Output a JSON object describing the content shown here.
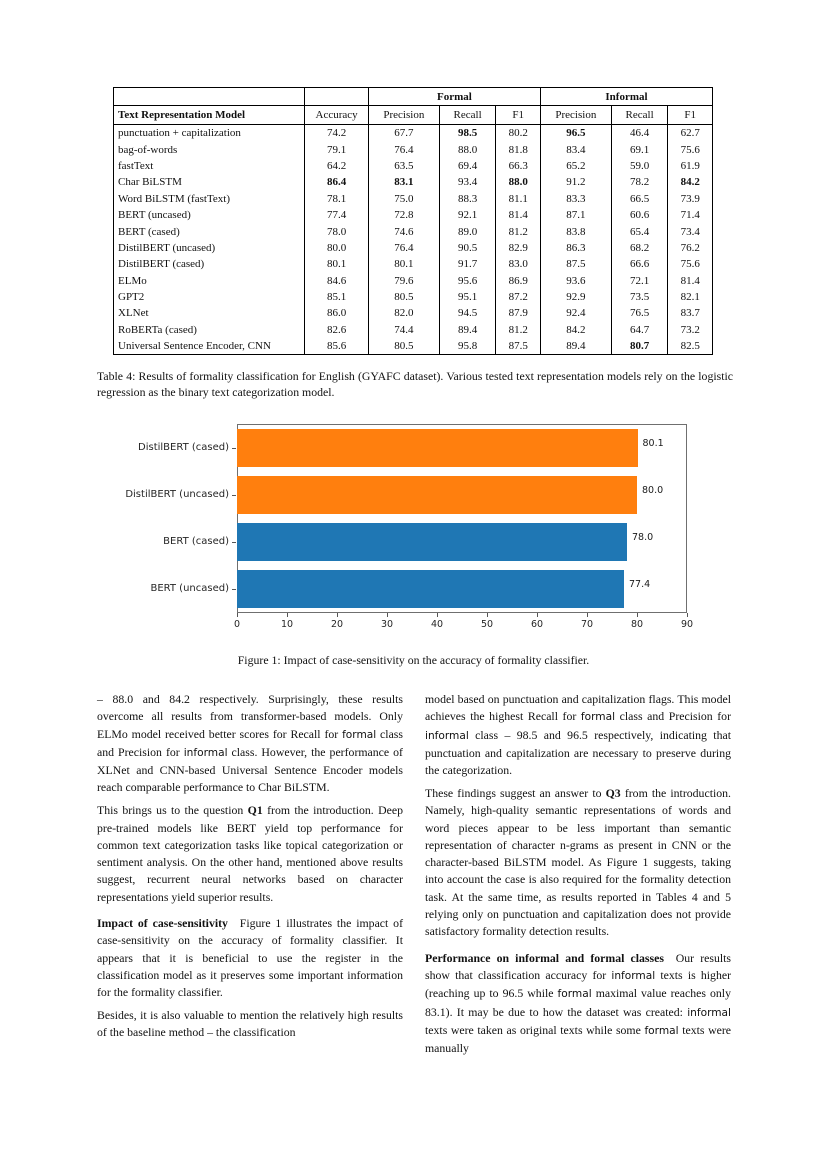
{
  "table": {
    "formal_header": "Formal",
    "informal_header": "Informal",
    "columns": [
      "Text Representation Model",
      "Accuracy",
      "Precision",
      "Recall",
      "F1",
      "Precision",
      "Recall",
      "F1"
    ],
    "rows": [
      {
        "model": "punctuation + capitalization",
        "values": [
          "74.2",
          "67.7",
          "98.5",
          "80.2",
          "96.5",
          "46.4",
          "62.7"
        ],
        "bold": [
          2,
          4
        ]
      },
      {
        "model": "bag-of-words",
        "values": [
          "79.1",
          "76.4",
          "88.0",
          "81.8",
          "83.4",
          "69.1",
          "75.6"
        ],
        "bold": []
      },
      {
        "model": "fastText",
        "values": [
          "64.2",
          "63.5",
          "69.4",
          "66.3",
          "65.2",
          "59.0",
          "61.9"
        ],
        "bold": []
      },
      {
        "model": "Char BiLSTM",
        "values": [
          "86.4",
          "83.1",
          "93.4",
          "88.0",
          "91.2",
          "78.2",
          "84.2"
        ],
        "bold": [
          0,
          1,
          3,
          6
        ]
      },
      {
        "model": "Word BiLSTM (fastText)",
        "values": [
          "78.1",
          "75.0",
          "88.3",
          "81.1",
          "83.3",
          "66.5",
          "73.9"
        ],
        "bold": []
      },
      {
        "model": "BERT (uncased)",
        "values": [
          "77.4",
          "72.8",
          "92.1",
          "81.4",
          "87.1",
          "60.6",
          "71.4"
        ],
        "bold": []
      },
      {
        "model": "BERT (cased)",
        "values": [
          "78.0",
          "74.6",
          "89.0",
          "81.2",
          "83.8",
          "65.4",
          "73.4"
        ],
        "bold": []
      },
      {
        "model": "DistilBERT (uncased)",
        "values": [
          "80.0",
          "76.4",
          "90.5",
          "82.9",
          "86.3",
          "68.2",
          "76.2"
        ],
        "bold": []
      },
      {
        "model": "DistilBERT (cased)",
        "values": [
          "80.1",
          "80.1",
          "91.7",
          "83.0",
          "87.5",
          "66.6",
          "75.6"
        ],
        "bold": []
      },
      {
        "model": "ELMo",
        "values": [
          "84.6",
          "79.6",
          "95.6",
          "86.9",
          "93.6",
          "72.1",
          "81.4"
        ],
        "bold": []
      },
      {
        "model": "GPT2",
        "values": [
          "85.1",
          "80.5",
          "95.1",
          "87.2",
          "92.9",
          "73.5",
          "82.1"
        ],
        "bold": []
      },
      {
        "model": "XLNet",
        "values": [
          "86.0",
          "82.0",
          "94.5",
          "87.9",
          "92.4",
          "76.5",
          "83.7"
        ],
        "bold": []
      },
      {
        "model": "RoBERTa (cased)",
        "values": [
          "82.6",
          "74.4",
          "89.4",
          "81.2",
          "84.2",
          "64.7",
          "73.2"
        ],
        "bold": []
      },
      {
        "model": "Universal Sentence Encoder, CNN",
        "values": [
          "85.6",
          "80.5",
          "95.8",
          "87.5",
          "89.4",
          "80.7",
          "82.5"
        ],
        "bold": [
          5
        ]
      }
    ],
    "caption": "Table 4: Results of formality classification for English (GYAFC dataset). Various tested text representation models rely on the logistic regression as the binary text categorization model."
  },
  "chart_data": {
    "type": "bar",
    "orientation": "horizontal",
    "title": "",
    "xlabel": "",
    "ylabel": "",
    "grid": false,
    "categories": [
      "DistilBERT (cased)",
      "DistilBERT (uncased)",
      "BERT (cased)",
      "BERT (uncased)"
    ],
    "values": [
      80.1,
      80.0,
      78.0,
      77.4
    ],
    "value_labels": [
      "80.1",
      "80.0",
      "78.0",
      "77.4"
    ],
    "bar_colors": [
      "#ff7f0e",
      "#ff7f0e",
      "#1f77b4",
      "#1f77b4"
    ],
    "xlim": [
      0,
      90
    ],
    "xticks": [
      0,
      10,
      20,
      30,
      40,
      50,
      60,
      70,
      80,
      90
    ],
    "caption": "Figure 1: Impact of case-sensitivity on the accuracy of formality classifier."
  },
  "body": {
    "left_column": [
      {
        "segments": [
          {
            "t": "– 88.0 and 84.2 respectively.  Surprisingly, these results overcome all results from transformer-based models. Only ELMo model received better scores for Recall for ",
            "s": ""
          },
          {
            "t": "formal",
            "s": "sans"
          },
          {
            "t": " class and Precision for ",
            "s": ""
          },
          {
            "t": "informal",
            "s": "sans"
          },
          {
            "t": " class. However, the performance of XLNet and CNN-based Universal Sentence Encoder models reach comparable performance to Char BiLSTM.",
            "s": ""
          }
        ]
      },
      {
        "segments": [
          {
            "t": "This brings us to the question ",
            "s": ""
          },
          {
            "t": "Q1",
            "s": "b"
          },
          {
            "t": " from the introduction. Deep pre-trained models like BERT yield top performance for common text categorization tasks like topical categorization or sentiment analysis. On the other hand, mentioned above results suggest, recurrent neural networks based on character representations yield superior results.",
            "s": ""
          }
        ]
      },
      {
        "heading": true,
        "segments": [
          {
            "t": "Impact of case-sensitivity",
            "s": "b"
          },
          {
            "t": " Figure 1 illustrates the impact of case-sensitivity on the accuracy of formality classifier. It appears that it is beneficial to use the register in the classification model as it preserves some important information for the formality classifier.",
            "s": ""
          }
        ]
      },
      {
        "segments": [
          {
            "t": "Besides, it is also valuable to mention the relatively high results of the baseline method – the classification",
            "s": ""
          }
        ]
      }
    ],
    "right_column": [
      {
        "segments": [
          {
            "t": "model based on punctuation and capitalization flags. This model achieves the highest Recall for ",
            "s": ""
          },
          {
            "t": "formal",
            "s": "sans"
          },
          {
            "t": " class and Precision for ",
            "s": ""
          },
          {
            "t": "informal",
            "s": "sans"
          },
          {
            "t": " class – 98.5 and 96.5 respectively, indicating that punctuation and capitalization are necessary to preserve during the categorization.",
            "s": ""
          }
        ]
      },
      {
        "segments": [
          {
            "t": "These findings suggest an answer to ",
            "s": ""
          },
          {
            "t": "Q3",
            "s": "b"
          },
          {
            "t": " from the introduction.  Namely, high-quality semantic representations of words and word pieces appear to be less important than semantic representation of character n-grams as present in CNN or the character-based BiLSTM model. As Figure 1 suggests, taking into account the case is also required for the formality detection task. At the same time, as results reported in Tables 4 and 5 relying only on punctuation and capitalization does not provide satisfactory formality detection results.",
            "s": ""
          }
        ]
      },
      {
        "heading": true,
        "segments": [
          {
            "t": "Performance on informal and formal classes",
            "s": "b"
          },
          {
            "t": " Our results show that classification accuracy for ",
            "s": ""
          },
          {
            "t": "informal",
            "s": "sans"
          },
          {
            "t": " texts is higher (reaching up to 96.5 while ",
            "s": ""
          },
          {
            "t": "formal",
            "s": "sans"
          },
          {
            "t": " maximal value reaches only 83.1).  It may be due to how the dataset was created:  ",
            "s": ""
          },
          {
            "t": "informal",
            "s": "sans"
          },
          {
            "t": " texts were taken as original texts while some ",
            "s": ""
          },
          {
            "t": "formal",
            "s": "sans"
          },
          {
            "t": " texts were manually",
            "s": ""
          }
        ]
      }
    ]
  }
}
